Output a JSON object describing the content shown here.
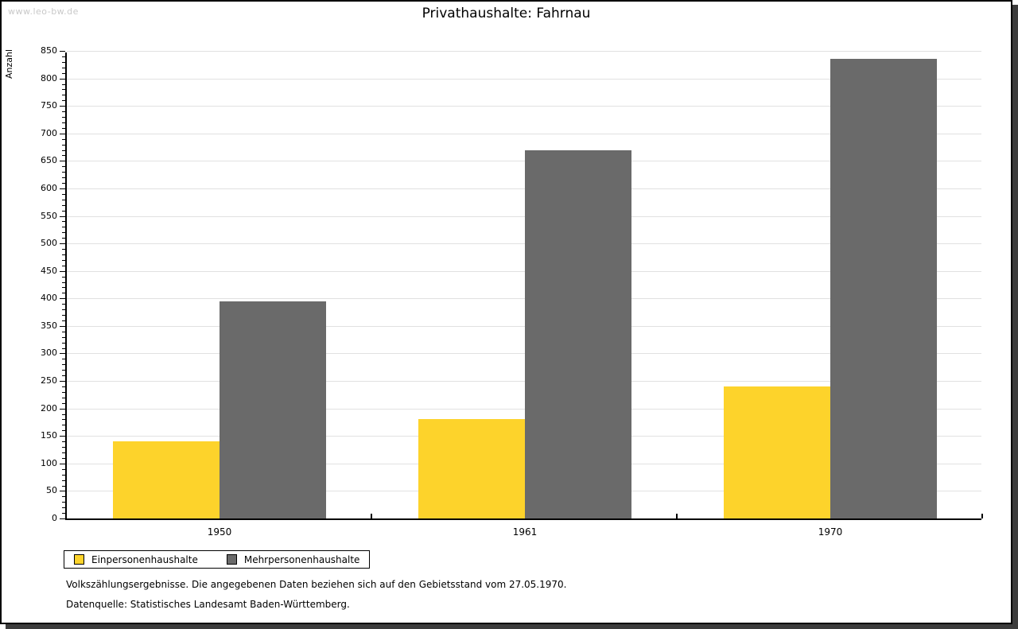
{
  "watermark": "www.leo-bw.de",
  "title": "Privathaushalte: Fahrnau",
  "chart_data": {
    "type": "bar",
    "title": "Privathaushalte: Fahrnau",
    "categories": [
      "1950",
      "1961",
      "1970"
    ],
    "series": [
      {
        "name": "Einpersonenhaushalte",
        "color": "#fdd32b",
        "values": [
          140,
          180,
          240
        ]
      },
      {
        "name": "Mehrpersonenhaushalte",
        "color": "#6a6a6a",
        "values": [
          395,
          670,
          835
        ]
      }
    ],
    "xlabel": "",
    "ylabel": "Anzahl",
    "ylim": [
      0,
      850
    ],
    "ytick_step": 50,
    "minor_tick_step": 10,
    "grid": true,
    "gridline_color": "#e1e1e1",
    "legend_position": "bottom-left"
  },
  "footer": {
    "line1": "Volkszählungsergebnisse. Die angegebenen Daten beziehen sich auf den Gebietsstand vom 27.05.1970.",
    "line2": "Datenquelle: Statistisches Landesamt Baden-Württemberg."
  },
  "colors": {
    "series1": "#fdd32b",
    "series2": "#6a6a6a",
    "shadow": "#3c3c3c",
    "watermark": "#c9c9c9"
  }
}
